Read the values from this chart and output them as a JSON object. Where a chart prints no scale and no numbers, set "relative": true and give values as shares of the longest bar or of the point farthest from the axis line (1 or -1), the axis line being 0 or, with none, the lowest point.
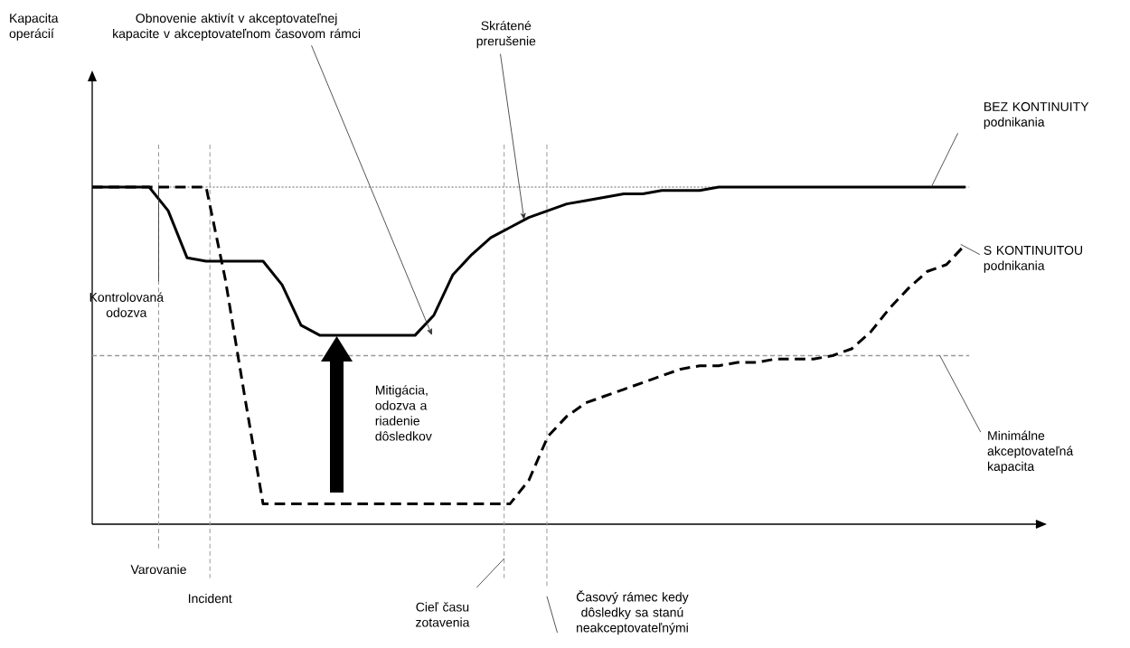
{
  "chart_data": {
    "type": "line",
    "relative": true,
    "categories": [
      null,
      null,
      null,
      null,
      null,
      null,
      null,
      null,
      null,
      null,
      null,
      null,
      null,
      null,
      null,
      null,
      null,
      null,
      null,
      null,
      null,
      null,
      null,
      null,
      null,
      null,
      null,
      null,
      null,
      null,
      null,
      null,
      null,
      null,
      null,
      null,
      null,
      null,
      null,
      null,
      null,
      null,
      null,
      null,
      null,
      null,
      null
    ],
    "series": [
      {
        "name": "BEZ KONTINUITY podnikania",
        "color": "#000000",
        "line_style": "solid",
        "values": [
          1,
          1,
          1,
          1,
          0.93,
          0.79,
          0.78,
          0.78,
          0.78,
          0.78,
          0.71,
          0.59,
          0.56,
          0.56,
          0.56,
          0.56,
          0.56,
          0.56,
          0.62,
          0.74,
          0.8,
          0.85,
          0.88,
          0.91,
          0.93,
          0.95,
          0.96,
          0.97,
          0.98,
          0.98,
          0.99,
          0.99,
          0.99,
          1,
          1,
          1,
          1,
          1,
          1,
          1,
          1,
          1,
          1,
          1,
          1,
          1,
          1
        ]
      },
      {
        "name": "S KONTINUITOU podnikania",
        "color": "#000000",
        "line_style": "dashed",
        "values": [
          1,
          1,
          1,
          1,
          1,
          1,
          1,
          0.73,
          0.39,
          0.06,
          0.06,
          0.06,
          0.06,
          0.06,
          0.06,
          0.06,
          0.06,
          0.06,
          0.06,
          0.06,
          0.06,
          0.06,
          0.06,
          0.13,
          0.26,
          0.32,
          0.36,
          0.38,
          0.4,
          0.42,
          0.44,
          0.46,
          0.47,
          0.47,
          0.48,
          0.48,
          0.49,
          0.49,
          0.49,
          0.5,
          0.52,
          0.57,
          0.64,
          0.7,
          0.75,
          0.77,
          0.83
        ]
      }
    ],
    "ref_lines": [
      {
        "axis": "y",
        "value": 1,
        "color": "#999999",
        "line_style": "dotted"
      },
      {
        "axis": "y",
        "value": 0.5,
        "label": "Minimálne akceptovateľná kapacita",
        "color": "#999999",
        "line_style": "dashed"
      }
    ],
    "annotations": [
      "Kapacita operácií",
      "Obnovenie aktivít v akceptovateľnej kapacite v akceptovateľnom časovom rámci",
      "Skrátené prerušenie",
      "Kontrolovaná odozva",
      "Mitigácia, odozva a riadenie dôsledkov",
      "Varovanie",
      "Incident",
      "Cieľ času zotavenia",
      "Časový rámec kedy dôsledky sa stanú neakceptovateľnými"
    ]
  }
}
